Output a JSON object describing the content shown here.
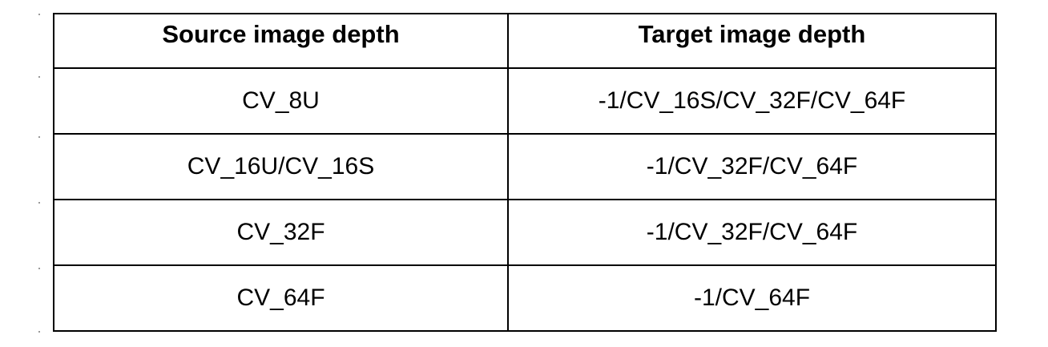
{
  "table": {
    "headers": [
      "Source image depth",
      "Target image depth"
    ],
    "rows": [
      {
        "source": "CV_8U",
        "target": "-1/CV_16S/CV_32F/CV_64F"
      },
      {
        "source": "CV_16U/CV_16S",
        "target": "-1/CV_32F/CV_64F"
      },
      {
        "source": "CV_32F",
        "target": "-1/CV_32F/CV_64F"
      },
      {
        "source": "CV_64F",
        "target": "-1/CV_64F"
      }
    ]
  }
}
